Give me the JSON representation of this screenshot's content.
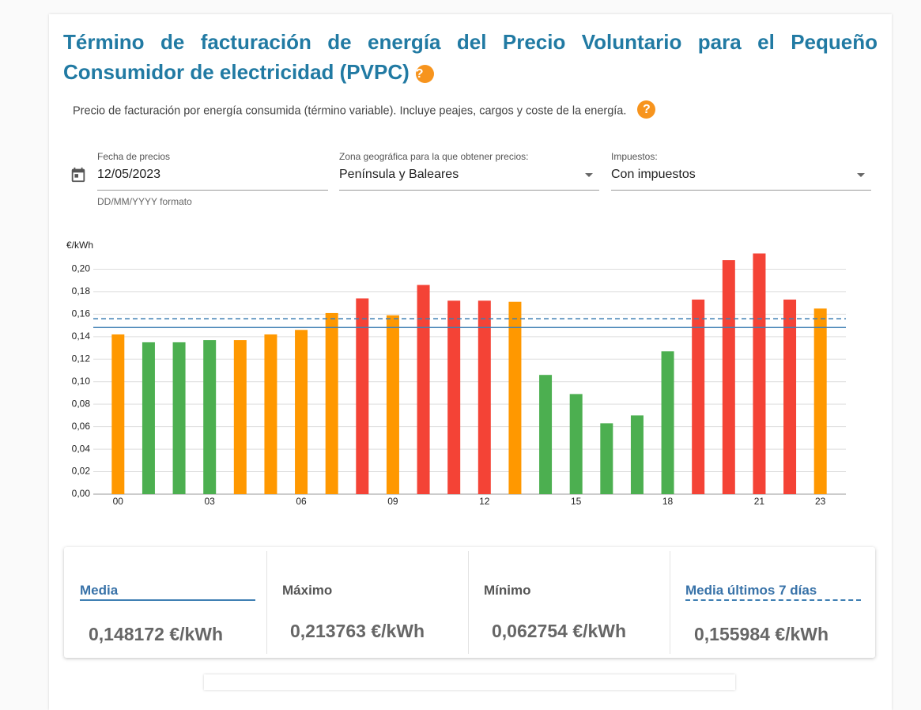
{
  "header": {
    "title": "Término de facturación de energía del Precio Voluntario para el Pequeño Consumidor de electricidad (PVPC)",
    "help_icon": "?"
  },
  "description": "Precio de facturación por energía consumida (término variable). Incluye peajes, cargos y coste de la energía.",
  "form": {
    "date": {
      "label": "Fecha de precios",
      "value": "12/05/2023",
      "hint": "DD/MM/YYYY formato"
    },
    "zone": {
      "label": "Zona geográfica para la que obtener precios:",
      "value": "Península y Baleares"
    },
    "taxes": {
      "label": "Impuestos:",
      "value": "Con impuestos"
    }
  },
  "chart_data": {
    "type": "bar",
    "y_label": "€/kWh",
    "categories": [
      "00",
      null,
      null,
      "03",
      null,
      null,
      "06",
      null,
      null,
      "09",
      null,
      null,
      "12",
      null,
      null,
      "15",
      null,
      null,
      "18",
      null,
      null,
      "21",
      null,
      "23"
    ],
    "values": [
      0.142,
      0.135,
      0.135,
      0.137,
      0.137,
      0.142,
      0.146,
      0.161,
      0.174,
      0.159,
      0.186,
      0.172,
      0.172,
      0.171,
      0.106,
      0.089,
      0.063,
      0.07,
      0.127,
      0.173,
      0.208,
      0.214,
      0.173,
      0.165
    ],
    "colors": [
      "#ff9800",
      "#4caf50",
      "#4caf50",
      "#4caf50",
      "#ff9800",
      "#ff9800",
      "#ff9800",
      "#ff9800",
      "#f44336",
      "#ff9800",
      "#f44336",
      "#f44336",
      "#f44336",
      "#ff9800",
      "#4caf50",
      "#4caf50",
      "#4caf50",
      "#4caf50",
      "#4caf50",
      "#f44336",
      "#f44336",
      "#f44336",
      "#f44336",
      "#ff9800"
    ],
    "ylim": [
      0,
      0.22
    ],
    "yticks": [
      {
        "value": 0,
        "label": "0,00"
      },
      {
        "value": 0.02,
        "label": "0,02"
      },
      {
        "value": 0.04,
        "label": "0,04"
      },
      {
        "value": 0.06,
        "label": "0,06"
      },
      {
        "value": 0.08,
        "label": "0,08"
      },
      {
        "value": 0.1,
        "label": "0,10"
      },
      {
        "value": 0.12,
        "label": "0,12"
      },
      {
        "value": 0.14,
        "label": "0,14"
      },
      {
        "value": 0.16,
        "label": "0,16"
      },
      {
        "value": 0.18,
        "label": "0,18"
      },
      {
        "value": 0.2,
        "label": "0,20"
      }
    ],
    "grid": true,
    "reference_lines": [
      {
        "value": 0.148172,
        "style": "solid",
        "color": "#3f7fb3"
      },
      {
        "value": 0.155984,
        "style": "dashed",
        "color": "#3f7fb3"
      }
    ]
  },
  "stats": [
    {
      "label": "Media",
      "value": "0,148172 €/kWh"
    },
    {
      "label": "Máximo",
      "value": "0,213763 €/kWh"
    },
    {
      "label": "Mínimo",
      "value": "0,062754 €/kWh"
    },
    {
      "label": "Media últimos 7 días",
      "value": "0,155984 €/kWh"
    }
  ]
}
